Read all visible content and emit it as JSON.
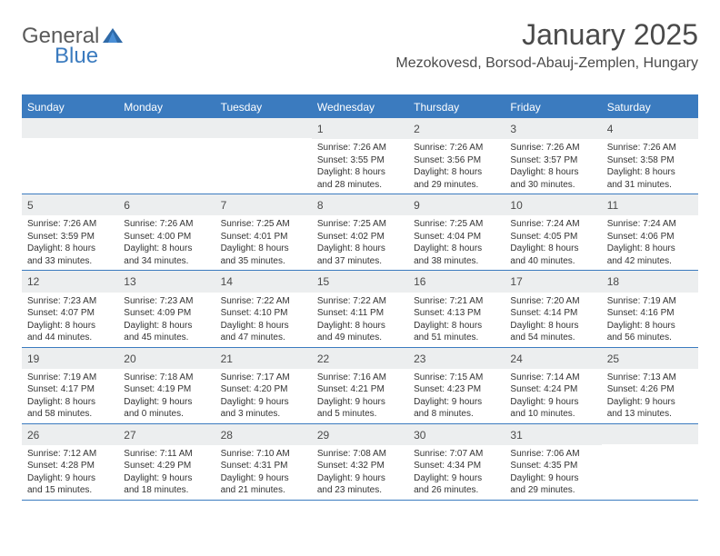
{
  "logo": {
    "text1": "General",
    "text2": "Blue"
  },
  "title": "January 2025",
  "location": "Mezokovesd, Borsod-Abauj-Zemplen, Hungary",
  "columns": [
    "Sunday",
    "Monday",
    "Tuesday",
    "Wednesday",
    "Thursday",
    "Friday",
    "Saturday"
  ],
  "style": {
    "header_bg": "#3b7bbf",
    "header_text": "#ffffff",
    "daynum_bg": "#eceeef",
    "border_color": "#3b7bbf",
    "body_text": "#333333"
  },
  "weeks": [
    [
      {
        "n": "",
        "sr": "",
        "ss": "",
        "dl": ""
      },
      {
        "n": "",
        "sr": "",
        "ss": "",
        "dl": ""
      },
      {
        "n": "",
        "sr": "",
        "ss": "",
        "dl": ""
      },
      {
        "n": "1",
        "sr": "7:26 AM",
        "ss": "3:55 PM",
        "dl": "8 hours and 28 minutes."
      },
      {
        "n": "2",
        "sr": "7:26 AM",
        "ss": "3:56 PM",
        "dl": "8 hours and 29 minutes."
      },
      {
        "n": "3",
        "sr": "7:26 AM",
        "ss": "3:57 PM",
        "dl": "8 hours and 30 minutes."
      },
      {
        "n": "4",
        "sr": "7:26 AM",
        "ss": "3:58 PM",
        "dl": "8 hours and 31 minutes."
      }
    ],
    [
      {
        "n": "5",
        "sr": "7:26 AM",
        "ss": "3:59 PM",
        "dl": "8 hours and 33 minutes."
      },
      {
        "n": "6",
        "sr": "7:26 AM",
        "ss": "4:00 PM",
        "dl": "8 hours and 34 minutes."
      },
      {
        "n": "7",
        "sr": "7:25 AM",
        "ss": "4:01 PM",
        "dl": "8 hours and 35 minutes."
      },
      {
        "n": "8",
        "sr": "7:25 AM",
        "ss": "4:02 PM",
        "dl": "8 hours and 37 minutes."
      },
      {
        "n": "9",
        "sr": "7:25 AM",
        "ss": "4:04 PM",
        "dl": "8 hours and 38 minutes."
      },
      {
        "n": "10",
        "sr": "7:24 AM",
        "ss": "4:05 PM",
        "dl": "8 hours and 40 minutes."
      },
      {
        "n": "11",
        "sr": "7:24 AM",
        "ss": "4:06 PM",
        "dl": "8 hours and 42 minutes."
      }
    ],
    [
      {
        "n": "12",
        "sr": "7:23 AM",
        "ss": "4:07 PM",
        "dl": "8 hours and 44 minutes."
      },
      {
        "n": "13",
        "sr": "7:23 AM",
        "ss": "4:09 PM",
        "dl": "8 hours and 45 minutes."
      },
      {
        "n": "14",
        "sr": "7:22 AM",
        "ss": "4:10 PM",
        "dl": "8 hours and 47 minutes."
      },
      {
        "n": "15",
        "sr": "7:22 AM",
        "ss": "4:11 PM",
        "dl": "8 hours and 49 minutes."
      },
      {
        "n": "16",
        "sr": "7:21 AM",
        "ss": "4:13 PM",
        "dl": "8 hours and 51 minutes."
      },
      {
        "n": "17",
        "sr": "7:20 AM",
        "ss": "4:14 PM",
        "dl": "8 hours and 54 minutes."
      },
      {
        "n": "18",
        "sr": "7:19 AM",
        "ss": "4:16 PM",
        "dl": "8 hours and 56 minutes."
      }
    ],
    [
      {
        "n": "19",
        "sr": "7:19 AM",
        "ss": "4:17 PM",
        "dl": "8 hours and 58 minutes."
      },
      {
        "n": "20",
        "sr": "7:18 AM",
        "ss": "4:19 PM",
        "dl": "9 hours and 0 minutes."
      },
      {
        "n": "21",
        "sr": "7:17 AM",
        "ss": "4:20 PM",
        "dl": "9 hours and 3 minutes."
      },
      {
        "n": "22",
        "sr": "7:16 AM",
        "ss": "4:21 PM",
        "dl": "9 hours and 5 minutes."
      },
      {
        "n": "23",
        "sr": "7:15 AM",
        "ss": "4:23 PM",
        "dl": "9 hours and 8 minutes."
      },
      {
        "n": "24",
        "sr": "7:14 AM",
        "ss": "4:24 PM",
        "dl": "9 hours and 10 minutes."
      },
      {
        "n": "25",
        "sr": "7:13 AM",
        "ss": "4:26 PM",
        "dl": "9 hours and 13 minutes."
      }
    ],
    [
      {
        "n": "26",
        "sr": "7:12 AM",
        "ss": "4:28 PM",
        "dl": "9 hours and 15 minutes."
      },
      {
        "n": "27",
        "sr": "7:11 AM",
        "ss": "4:29 PM",
        "dl": "9 hours and 18 minutes."
      },
      {
        "n": "28",
        "sr": "7:10 AM",
        "ss": "4:31 PM",
        "dl": "9 hours and 21 minutes."
      },
      {
        "n": "29",
        "sr": "7:08 AM",
        "ss": "4:32 PM",
        "dl": "9 hours and 23 minutes."
      },
      {
        "n": "30",
        "sr": "7:07 AM",
        "ss": "4:34 PM",
        "dl": "9 hours and 26 minutes."
      },
      {
        "n": "31",
        "sr": "7:06 AM",
        "ss": "4:35 PM",
        "dl": "9 hours and 29 minutes."
      },
      {
        "n": "",
        "sr": "",
        "ss": "",
        "dl": ""
      }
    ]
  ],
  "labels": {
    "sunrise": "Sunrise: ",
    "sunset": "Sunset: ",
    "daylight": "Daylight: "
  }
}
